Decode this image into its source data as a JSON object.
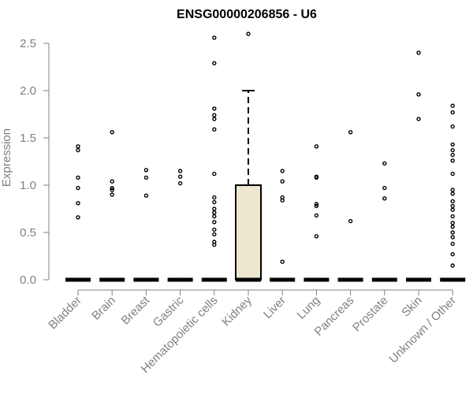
{
  "chart_data": {
    "type": "box",
    "title": "ENSG00000206856 - U6",
    "xlabel": "",
    "ylabel": "Expression",
    "ylim": [
      0,
      2.6
    ],
    "yticks": [
      "0.0",
      "0.5",
      "1.0",
      "1.5",
      "2.0",
      "2.5"
    ],
    "ytick_values": [
      0,
      0.5,
      1.0,
      1.5,
      2.0,
      2.5
    ],
    "categories": [
      "Bladder",
      "Brain",
      "Breast",
      "Gastric",
      "Hematopoietic cells",
      "Kidney",
      "Liver",
      "Lung",
      "Pancreas",
      "Prostate",
      "Skin",
      "Unknown / Other"
    ],
    "boxes": [
      {
        "category": "Bladder",
        "q1": 0,
        "median": 0,
        "q3": 0,
        "whisker_low": 0,
        "whisker_high": 0,
        "outliers": [
          1.41,
          1.37,
          1.08,
          0.97,
          0.81,
          0.66
        ]
      },
      {
        "category": "Brain",
        "q1": 0,
        "median": 0,
        "q3": 0,
        "whisker_low": 0,
        "whisker_high": 0,
        "outliers": [
          1.56,
          1.04,
          0.97,
          0.95,
          0.9
        ]
      },
      {
        "category": "Breast",
        "q1": 0,
        "median": 0,
        "q3": 0,
        "whisker_low": 0,
        "whisker_high": 0,
        "outliers": [
          1.16,
          1.08,
          0.89
        ]
      },
      {
        "category": "Gastric",
        "q1": 0,
        "median": 0,
        "q3": 0,
        "whisker_low": 0,
        "whisker_high": 0,
        "outliers": [
          1.15,
          1.09,
          1.02
        ]
      },
      {
        "category": "Hematopoietic cells",
        "q1": 0,
        "median": 0,
        "q3": 0,
        "whisker_low": 0,
        "whisker_high": 0,
        "outliers": [
          2.56,
          2.29,
          1.81,
          1.74,
          1.7,
          1.59,
          1.12,
          0.87,
          0.82,
          0.75,
          0.71,
          0.67,
          0.61,
          0.53,
          0.48,
          0.4,
          0.37
        ]
      },
      {
        "category": "Kidney",
        "q1": 0,
        "median": 0,
        "q3": 1.0,
        "whisker_low": 0,
        "whisker_high": 2.0,
        "outliers": [
          2.6
        ]
      },
      {
        "category": "Liver",
        "q1": 0,
        "median": 0,
        "q3": 0,
        "whisker_low": 0,
        "whisker_high": 0,
        "outliers": [
          1.15,
          1.04,
          0.87,
          0.84,
          0.19
        ]
      },
      {
        "category": "Lung",
        "q1": 0,
        "median": 0,
        "q3": 0,
        "whisker_low": 0,
        "whisker_high": 0,
        "outliers": [
          1.41,
          1.09,
          1.08,
          0.8,
          0.78,
          0.68,
          0.46
        ]
      },
      {
        "category": "Pancreas",
        "q1": 0,
        "median": 0,
        "q3": 0,
        "whisker_low": 0,
        "whisker_high": 0,
        "outliers": [
          1.56,
          0.62
        ]
      },
      {
        "category": "Prostate",
        "q1": 0,
        "median": 0,
        "q3": 0,
        "whisker_low": 0,
        "whisker_high": 0,
        "outliers": [
          1.23,
          0.97,
          0.86
        ]
      },
      {
        "category": "Skin",
        "q1": 0,
        "median": 0,
        "q3": 0,
        "whisker_low": 0,
        "whisker_high": 0,
        "outliers": [
          2.4,
          1.96,
          1.7
        ]
      },
      {
        "category": "Unknown / Other",
        "q1": 0,
        "median": 0,
        "q3": 0,
        "whisker_low": 0,
        "whisker_high": 0,
        "outliers": [
          1.84,
          1.77,
          1.62,
          1.43,
          1.37,
          1.32,
          1.26,
          1.12,
          0.95,
          0.91,
          0.83,
          0.78,
          0.74,
          0.67,
          0.6,
          0.56,
          0.5,
          0.45,
          0.38,
          0.27,
          0.15
        ]
      }
    ],
    "colors": {
      "box_fill": "#ede7cf",
      "box_stroke": "#000000",
      "axis": "#808080",
      "text": "#808080",
      "title": "#000000"
    },
    "grid": false,
    "legend": "none"
  }
}
